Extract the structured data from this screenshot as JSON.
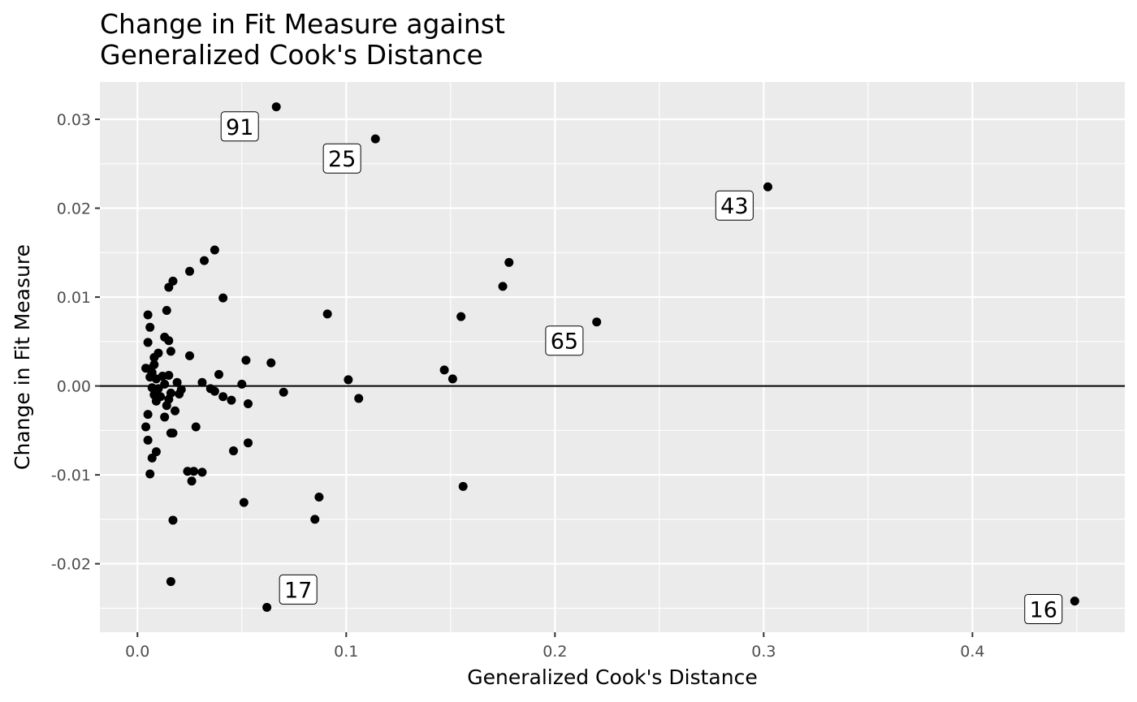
{
  "chart_data": {
    "type": "scatter",
    "title_lines": [
      "Change in Fit Measure against",
      "Generalized Cook's Distance"
    ],
    "xlabel": "Generalized Cook's Distance",
    "ylabel": "Change in Fit Measure",
    "xlim": [
      -0.018,
      0.473
    ],
    "ylim": [
      -0.0277,
      0.0342
    ],
    "x_ticks": [
      0.0,
      0.1,
      0.2,
      0.3,
      0.4
    ],
    "x_tick_labels": [
      "0.0",
      "0.1",
      "0.2",
      "0.3",
      "0.4"
    ],
    "y_ticks": [
      -0.02,
      -0.01,
      0.0,
      0.01,
      0.02,
      0.03
    ],
    "y_tick_labels": [
      "-0.02",
      "-0.01",
      "0.00",
      "0.01",
      "0.02",
      "0.03"
    ],
    "grid": true,
    "reference_line_y": 0,
    "colors": {
      "panel": "#ebebeb",
      "grid": "#ffffff",
      "point": "#000000",
      "tick_text": "#4d4d4d"
    },
    "points": [
      [
        0.0665,
        0.0314
      ],
      [
        0.114,
        0.0278
      ],
      [
        0.302,
        0.0224
      ],
      [
        0.22,
        0.0072
      ],
      [
        0.449,
        -0.0242
      ],
      [
        0.062,
        -0.0249
      ],
      [
        0.037,
        0.0153
      ],
      [
        0.032,
        0.0141
      ],
      [
        0.025,
        0.0129
      ],
      [
        0.017,
        0.0118
      ],
      [
        0.015,
        0.0111
      ],
      [
        0.041,
        0.0099
      ],
      [
        0.014,
        0.0085
      ],
      [
        0.005,
        0.008
      ],
      [
        0.091,
        0.0081
      ],
      [
        0.006,
        0.0066
      ],
      [
        0.013,
        0.0055
      ],
      [
        0.015,
        0.0051
      ],
      [
        0.005,
        0.0049
      ],
      [
        0.016,
        0.0039
      ],
      [
        0.01,
        0.0037
      ],
      [
        0.025,
        0.0034
      ],
      [
        0.008,
        0.0032
      ],
      [
        0.052,
        0.0029
      ],
      [
        0.064,
        0.0026
      ],
      [
        0.008,
        0.0024
      ],
      [
        0.004,
        0.002
      ],
      [
        0.006,
        0.0019
      ],
      [
        0.007,
        0.0015
      ],
      [
        0.039,
        0.0013
      ],
      [
        0.006,
        0.001
      ],
      [
        0.012,
        0.0011
      ],
      [
        0.015,
        0.0012
      ],
      [
        0.009,
        0.0008
      ],
      [
        0.019,
        0.0004
      ],
      [
        0.031,
        0.0004
      ],
      [
        0.05,
        0.0002
      ],
      [
        0.101,
        0.0007
      ],
      [
        0.007,
        -0.0002
      ],
      [
        0.01,
        -0.0003
      ],
      [
        0.013,
        0.0002
      ],
      [
        0.021,
        -0.0004
      ],
      [
        0.035,
        -0.0003
      ],
      [
        0.037,
        -0.0006
      ],
      [
        0.07,
        -0.0007
      ],
      [
        0.008,
        -0.001
      ],
      [
        0.016,
        -0.0008
      ],
      [
        0.02,
        -0.0009
      ],
      [
        0.041,
        -0.0012
      ],
      [
        0.011,
        -0.0012
      ],
      [
        0.009,
        -0.0017
      ],
      [
        0.015,
        -0.0015
      ],
      [
        0.045,
        -0.0016
      ],
      [
        0.053,
        -0.002
      ],
      [
        0.106,
        -0.0014
      ],
      [
        0.014,
        -0.0022
      ],
      [
        0.018,
        -0.0028
      ],
      [
        0.005,
        -0.0032
      ],
      [
        0.013,
        -0.0035
      ],
      [
        0.028,
        -0.0046
      ],
      [
        0.004,
        -0.0046
      ],
      [
        0.016,
        -0.0053
      ],
      [
        0.017,
        -0.0053
      ],
      [
        0.005,
        -0.0061
      ],
      [
        0.053,
        -0.0064
      ],
      [
        0.009,
        -0.0074
      ],
      [
        0.046,
        -0.0073
      ],
      [
        0.007,
        -0.0081
      ],
      [
        0.006,
        -0.0099
      ],
      [
        0.024,
        -0.0096
      ],
      [
        0.027,
        -0.0096
      ],
      [
        0.031,
        -0.0097
      ],
      [
        0.026,
        -0.0107
      ],
      [
        0.087,
        -0.0125
      ],
      [
        0.051,
        -0.0131
      ],
      [
        0.085,
        -0.015
      ],
      [
        0.017,
        -0.0151
      ],
      [
        0.016,
        -0.022
      ],
      [
        0.147,
        0.0018
      ],
      [
        0.151,
        0.0008
      ],
      [
        0.155,
        0.0078
      ],
      [
        0.156,
        -0.0113
      ],
      [
        0.175,
        0.0112
      ],
      [
        0.178,
        0.0139
      ]
    ],
    "labeled_points": [
      {
        "label": "91",
        "x": 0.0665,
        "y": 0.0314,
        "box_x": 0.049,
        "box_y": 0.0292
      },
      {
        "label": "25",
        "x": 0.114,
        "y": 0.0278,
        "box_x": 0.098,
        "box_y": 0.0256
      },
      {
        "label": "43",
        "x": 0.302,
        "y": 0.0224,
        "box_x": 0.286,
        "box_y": 0.0203
      },
      {
        "label": "65",
        "x": 0.22,
        "y": 0.0072,
        "box_x": 0.2045,
        "box_y": 0.0051
      },
      {
        "label": "16",
        "x": 0.449,
        "y": -0.0242,
        "box_x": 0.434,
        "box_y": -0.0251
      },
      {
        "label": "17",
        "x": 0.062,
        "y": -0.0249,
        "box_x": 0.077,
        "box_y": -0.0229
      }
    ]
  }
}
